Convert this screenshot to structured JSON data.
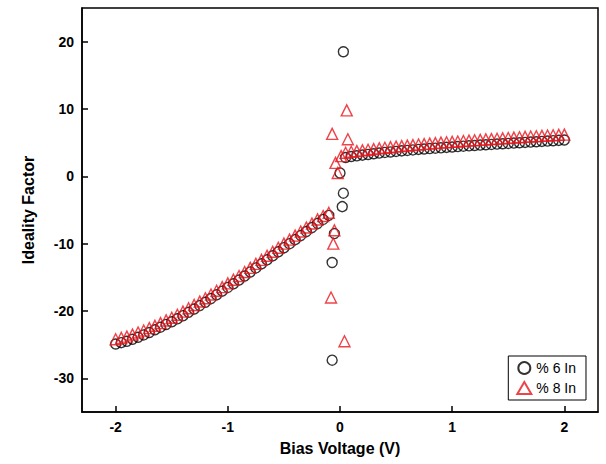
{
  "chart_data": {
    "type": "scatter",
    "x_label": "Bias Voltage (V)",
    "y_label": "Ideality Factor",
    "xlim": [
      -2.3,
      2.3
    ],
    "xticks": [
      -2,
      -1,
      0,
      1,
      2
    ],
    "ylim": [
      -35,
      25
    ],
    "yticks": [
      -30,
      -20,
      -10,
      0,
      10,
      20
    ],
    "grid": false,
    "legend": "lower right",
    "series": [
      {
        "name": "% 6 In",
        "color": "#000000",
        "marker": "circle",
        "x": [
          -2.0,
          -1.95,
          -1.9,
          -1.85,
          -1.8,
          -1.75,
          -1.7,
          -1.65,
          -1.6,
          -1.55,
          -1.5,
          -1.45,
          -1.4,
          -1.35,
          -1.3,
          -1.25,
          -1.2,
          -1.15,
          -1.1,
          -1.05,
          -1.0,
          -0.95,
          -0.9,
          -0.85,
          -0.8,
          -0.75,
          -0.7,
          -0.65,
          -0.6,
          -0.55,
          -0.5,
          -0.45,
          -0.4,
          -0.35,
          -0.3,
          -0.25,
          -0.2,
          -0.15,
          -0.1,
          -0.07,
          -0.07,
          -0.05,
          0.0,
          0.02,
          0.03,
          0.03,
          0.05,
          0.1,
          0.15,
          0.2,
          0.25,
          0.3,
          0.35,
          0.4,
          0.45,
          0.5,
          0.55,
          0.6,
          0.65,
          0.7,
          0.75,
          0.8,
          0.85,
          0.9,
          0.95,
          1.0,
          1.05,
          1.1,
          1.15,
          1.2,
          1.25,
          1.3,
          1.35,
          1.4,
          1.45,
          1.5,
          1.55,
          1.6,
          1.65,
          1.7,
          1.75,
          1.8,
          1.85,
          1.9,
          1.95,
          2.0
        ],
        "values": [
          -24.9,
          -24.7,
          -24.5,
          -24.2,
          -23.9,
          -23.55,
          -23.2,
          -22.8,
          -22.4,
          -22.0,
          -21.6,
          -21.15,
          -20.7,
          -20.2,
          -19.7,
          -19.2,
          -18.7,
          -18.15,
          -17.6,
          -17.05,
          -16.5,
          -15.95,
          -15.4,
          -14.8,
          -14.2,
          -13.6,
          -13.0,
          -12.4,
          -11.8,
          -11.2,
          -10.6,
          -10.0,
          -9.4,
          -8.8,
          -8.2,
          -7.6,
          -7.0,
          -6.4,
          -5.8,
          -12.8,
          -27.3,
          -8.5,
          0.5,
          -4.5,
          18.5,
          -2.5,
          2.8,
          2.95,
          3.05,
          3.15,
          3.25,
          3.35,
          3.45,
          3.55,
          3.62,
          3.7,
          3.78,
          3.85,
          3.92,
          4.0,
          4.06,
          4.12,
          4.18,
          4.24,
          4.3,
          4.36,
          4.42,
          4.48,
          4.53,
          4.58,
          4.64,
          4.69,
          4.74,
          4.79,
          4.84,
          4.89,
          4.94,
          4.99,
          5.04,
          5.09,
          5.14,
          5.19,
          5.24,
          5.29,
          5.34,
          5.4
        ]
      },
      {
        "name": "% 8 In",
        "color": "#e8141b",
        "marker": "triangle",
        "x": [
          -2.0,
          -1.95,
          -1.9,
          -1.85,
          -1.8,
          -1.75,
          -1.7,
          -1.65,
          -1.6,
          -1.55,
          -1.5,
          -1.45,
          -1.4,
          -1.35,
          -1.3,
          -1.25,
          -1.2,
          -1.15,
          -1.1,
          -1.05,
          -1.0,
          -0.95,
          -0.9,
          -0.85,
          -0.8,
          -0.75,
          -0.7,
          -0.65,
          -0.6,
          -0.55,
          -0.5,
          -0.45,
          -0.4,
          -0.35,
          -0.3,
          -0.25,
          -0.2,
          -0.15,
          -0.1,
          -0.08,
          -0.07,
          -0.06,
          -0.05,
          -0.04,
          -0.02,
          0.01,
          0.04,
          0.06,
          0.07,
          0.05,
          0.1,
          0.15,
          0.2,
          0.25,
          0.3,
          0.35,
          0.4,
          0.45,
          0.5,
          0.55,
          0.6,
          0.65,
          0.7,
          0.75,
          0.8,
          0.85,
          0.9,
          0.95,
          1.0,
          1.05,
          1.1,
          1.15,
          1.2,
          1.25,
          1.3,
          1.35,
          1.4,
          1.45,
          1.5,
          1.55,
          1.6,
          1.65,
          1.7,
          1.75,
          1.8,
          1.85,
          1.9,
          1.95,
          2.0
        ],
        "values": [
          -24.2,
          -24.0,
          -23.8,
          -23.5,
          -23.2,
          -22.9,
          -22.55,
          -22.2,
          -21.8,
          -21.4,
          -21.0,
          -20.55,
          -20.1,
          -19.6,
          -19.1,
          -18.6,
          -18.1,
          -17.55,
          -17.0,
          -16.45,
          -15.9,
          -15.35,
          -14.8,
          -14.2,
          -13.6,
          -13.0,
          -12.4,
          -11.8,
          -11.2,
          -10.6,
          -10.0,
          -9.4,
          -8.8,
          -8.2,
          -7.6,
          -7.0,
          -6.4,
          -5.9,
          -5.4,
          -18.0,
          6.3,
          -10.0,
          -8.0,
          2.0,
          0.5,
          3.0,
          -24.5,
          9.8,
          5.5,
          3.5,
          3.65,
          3.75,
          3.85,
          3.95,
          4.05,
          4.15,
          4.25,
          4.33,
          4.41,
          4.49,
          4.57,
          4.64,
          4.72,
          4.79,
          4.86,
          4.93,
          5.0,
          5.06,
          5.12,
          5.18,
          5.24,
          5.3,
          5.36,
          5.42,
          5.48,
          5.53,
          5.59,
          5.64,
          5.7,
          5.75,
          5.8,
          5.86,
          5.91,
          5.96,
          6.01,
          6.06,
          6.11,
          6.16,
          6.2
        ]
      }
    ]
  }
}
